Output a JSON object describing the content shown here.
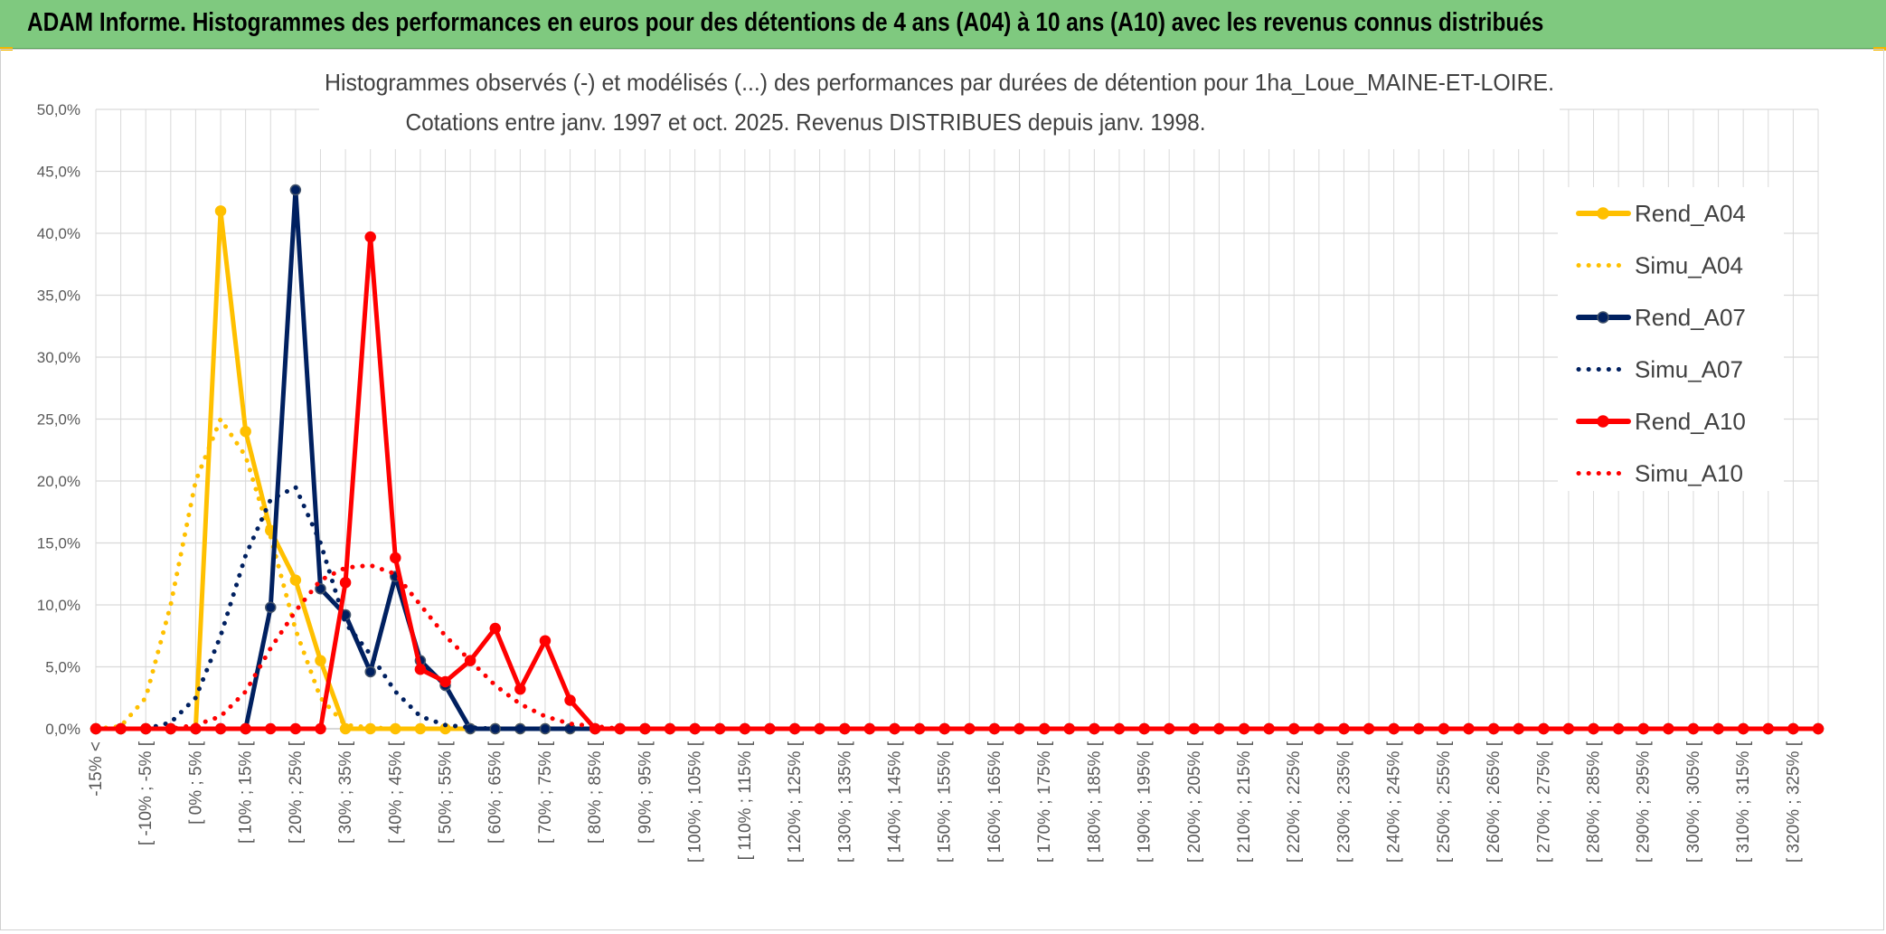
{
  "banner": {
    "title": "ADAM Informe. Histogrammes des performances en euros pour des détentions de 4 ans (A04) à 10 ans (A10) avec les revenus connus distribués"
  },
  "chart_data": {
    "type": "line",
    "title": "Histogrammes observés (-) et modélisés (...) des performances par durées de détention pour 1ha_Loue_MAINE-ET-LOIRE.",
    "subtitle": "Cotations entre janv. 1997 et oct. 2025. Revenus DISTRIBUES depuis janv. 1998.",
    "xlabel": "",
    "ylabel": "",
    "ylim": [
      0,
      50
    ],
    "y_ticks": [
      "0,0%",
      "5,0%",
      "10,0%",
      "15,0%",
      "20,0%",
      "25,0%",
      "30,0%",
      "35,0%",
      "40,0%",
      "45,0%",
      "50,0%"
    ],
    "grid": true,
    "legend_position": "top-right",
    "categories": [
      "-15% <",
      "",
      "[ -10% ; -5% [",
      "",
      "[ 0% ; 5% [",
      "",
      "[ 10% ; 15% [",
      "",
      "[ 20% ; 25% [",
      "",
      "[ 30% ; 35% [",
      "",
      "[ 40% ; 45% [",
      "",
      "[ 50% ; 55% [",
      "",
      "[ 60% ; 65% [",
      "",
      "[ 70% ; 75% [",
      "",
      "[ 80% ; 85% [",
      "",
      "[ 90% ; 95% [",
      "",
      "[ 100% ; 105% [",
      "",
      "[ 110% ; 115% [",
      "",
      "[ 120% ; 125% [",
      "",
      "[ 130% ; 135% [",
      "",
      "[ 140% ; 145% [",
      "",
      "[ 150% ; 155% [",
      "",
      "[ 160% ; 165% [",
      "",
      "[ 170% ; 175% [",
      "",
      "[ 180% ; 185% [",
      "",
      "[ 190% ; 195% [",
      "",
      "[ 200% ; 205% [",
      "",
      "[ 210% ; 215% [",
      "",
      "[ 220% ; 225% [",
      "",
      "[ 230% ; 235% [",
      "",
      "[ 240% ; 245% [",
      "",
      "[ 250% ; 255% [",
      "",
      "[ 260% ; 265% [",
      "",
      "[ 270% ; 275% [",
      "",
      "[ 280% ; 285% [",
      "",
      "[ 290% ; 295% [",
      "",
      "[ 300% ; 305% [",
      "",
      "[ 310% ; 315% [",
      "",
      "[ 320% ; 325% [",
      ""
    ],
    "series": [
      {
        "name": "Rend_A04",
        "style": "solid",
        "color": "#FFC000",
        "values": [
          0,
          0,
          0,
          0,
          0,
          41.8,
          24.0,
          16.0,
          12.0,
          5.5,
          0,
          0,
          0,
          0,
          0,
          0,
          0,
          0,
          0,
          0,
          0,
          0,
          0,
          0,
          0,
          0,
          0,
          0,
          0,
          0,
          0,
          0,
          0,
          0,
          0,
          0,
          0,
          0,
          0,
          0,
          0,
          0,
          0,
          0,
          0,
          0,
          0,
          0,
          0,
          0,
          0,
          0,
          0,
          0,
          0,
          0,
          0,
          0,
          0,
          0,
          0,
          0,
          0,
          0,
          0,
          0,
          0,
          0,
          0,
          0
        ]
      },
      {
        "name": "Simu_A04",
        "style": "dotted",
        "color": "#FFC000",
        "values": [
          0,
          0.2,
          2.5,
          10.0,
          20.0,
          25.0,
          22.0,
          15.5,
          8.0,
          2.5,
          0.3,
          0.1,
          0,
          0,
          0,
          0,
          0,
          0,
          0,
          0,
          0,
          0,
          0,
          0,
          0,
          0,
          0,
          0,
          0,
          0,
          0,
          0,
          0,
          0,
          0,
          0,
          0,
          0,
          0,
          0,
          0,
          0,
          0,
          0,
          0,
          0,
          0,
          0,
          0,
          0,
          0,
          0,
          0,
          0,
          0,
          0,
          0,
          0,
          0,
          0,
          0,
          0,
          0,
          0,
          0,
          0,
          0,
          0,
          0,
          0
        ]
      },
      {
        "name": "Rend_A07",
        "style": "solid",
        "color": "#002060",
        "values": [
          0,
          0,
          0,
          0,
          0,
          0,
          0,
          9.8,
          43.5,
          11.3,
          9.2,
          4.6,
          12.3,
          5.5,
          3.5,
          0,
          0,
          0,
          0,
          0,
          0,
          0,
          0,
          0,
          0,
          0,
          0,
          0,
          0,
          0,
          0,
          0,
          0,
          0,
          0,
          0,
          0,
          0,
          0,
          0,
          0,
          0,
          0,
          0,
          0,
          0,
          0,
          0,
          0,
          0,
          0,
          0,
          0,
          0,
          0,
          0,
          0,
          0,
          0,
          0,
          0,
          0,
          0,
          0,
          0,
          0,
          0,
          0,
          0,
          0
        ]
      },
      {
        "name": "Simu_A07",
        "style": "dotted",
        "color": "#002060",
        "values": [
          0,
          0,
          0,
          0.5,
          2.5,
          7.5,
          14.0,
          18.5,
          19.5,
          15.0,
          8.5,
          6.0,
          3.0,
          1.0,
          0.3,
          0.1,
          0,
          0,
          0,
          0,
          0,
          0,
          0,
          0,
          0,
          0,
          0,
          0,
          0,
          0,
          0,
          0,
          0,
          0,
          0,
          0,
          0,
          0,
          0,
          0,
          0,
          0,
          0,
          0,
          0,
          0,
          0,
          0,
          0,
          0,
          0,
          0,
          0,
          0,
          0,
          0,
          0,
          0,
          0,
          0,
          0,
          0,
          0,
          0,
          0,
          0,
          0,
          0,
          0,
          0
        ]
      },
      {
        "name": "Rend_A10",
        "style": "solid",
        "color": "#FF0000",
        "values": [
          0,
          0,
          0,
          0,
          0,
          0,
          0,
          0,
          0,
          0,
          11.8,
          39.7,
          13.8,
          4.8,
          3.8,
          5.5,
          8.1,
          3.2,
          7.1,
          2.3,
          0,
          0,
          0,
          0,
          0,
          0,
          0,
          0,
          0,
          0,
          0,
          0,
          0,
          0,
          0,
          0,
          0,
          0,
          0,
          0,
          0,
          0,
          0,
          0,
          0,
          0,
          0,
          0,
          0,
          0,
          0,
          0,
          0,
          0,
          0,
          0,
          0,
          0,
          0,
          0,
          0,
          0,
          0,
          0,
          0,
          0,
          0,
          0,
          0,
          0
        ]
      },
      {
        "name": "Simu_A10",
        "style": "dotted",
        "color": "#FF0000",
        "values": [
          0,
          0,
          0,
          0,
          0.3,
          1.0,
          3.0,
          6.5,
          9.5,
          12.0,
          13.0,
          13.2,
          12.5,
          10.0,
          7.5,
          5.5,
          3.5,
          2.0,
          1.0,
          0.4,
          0.2,
          0,
          0,
          0,
          0,
          0,
          0,
          0,
          0,
          0,
          0,
          0,
          0,
          0,
          0,
          0,
          0,
          0,
          0,
          0,
          0,
          0,
          0,
          0,
          0,
          0,
          0,
          0,
          0,
          0,
          0,
          0,
          0,
          0,
          0,
          0,
          0,
          0,
          0,
          0,
          0,
          0,
          0,
          0,
          0,
          0,
          0,
          0,
          0,
          0
        ]
      }
    ]
  }
}
